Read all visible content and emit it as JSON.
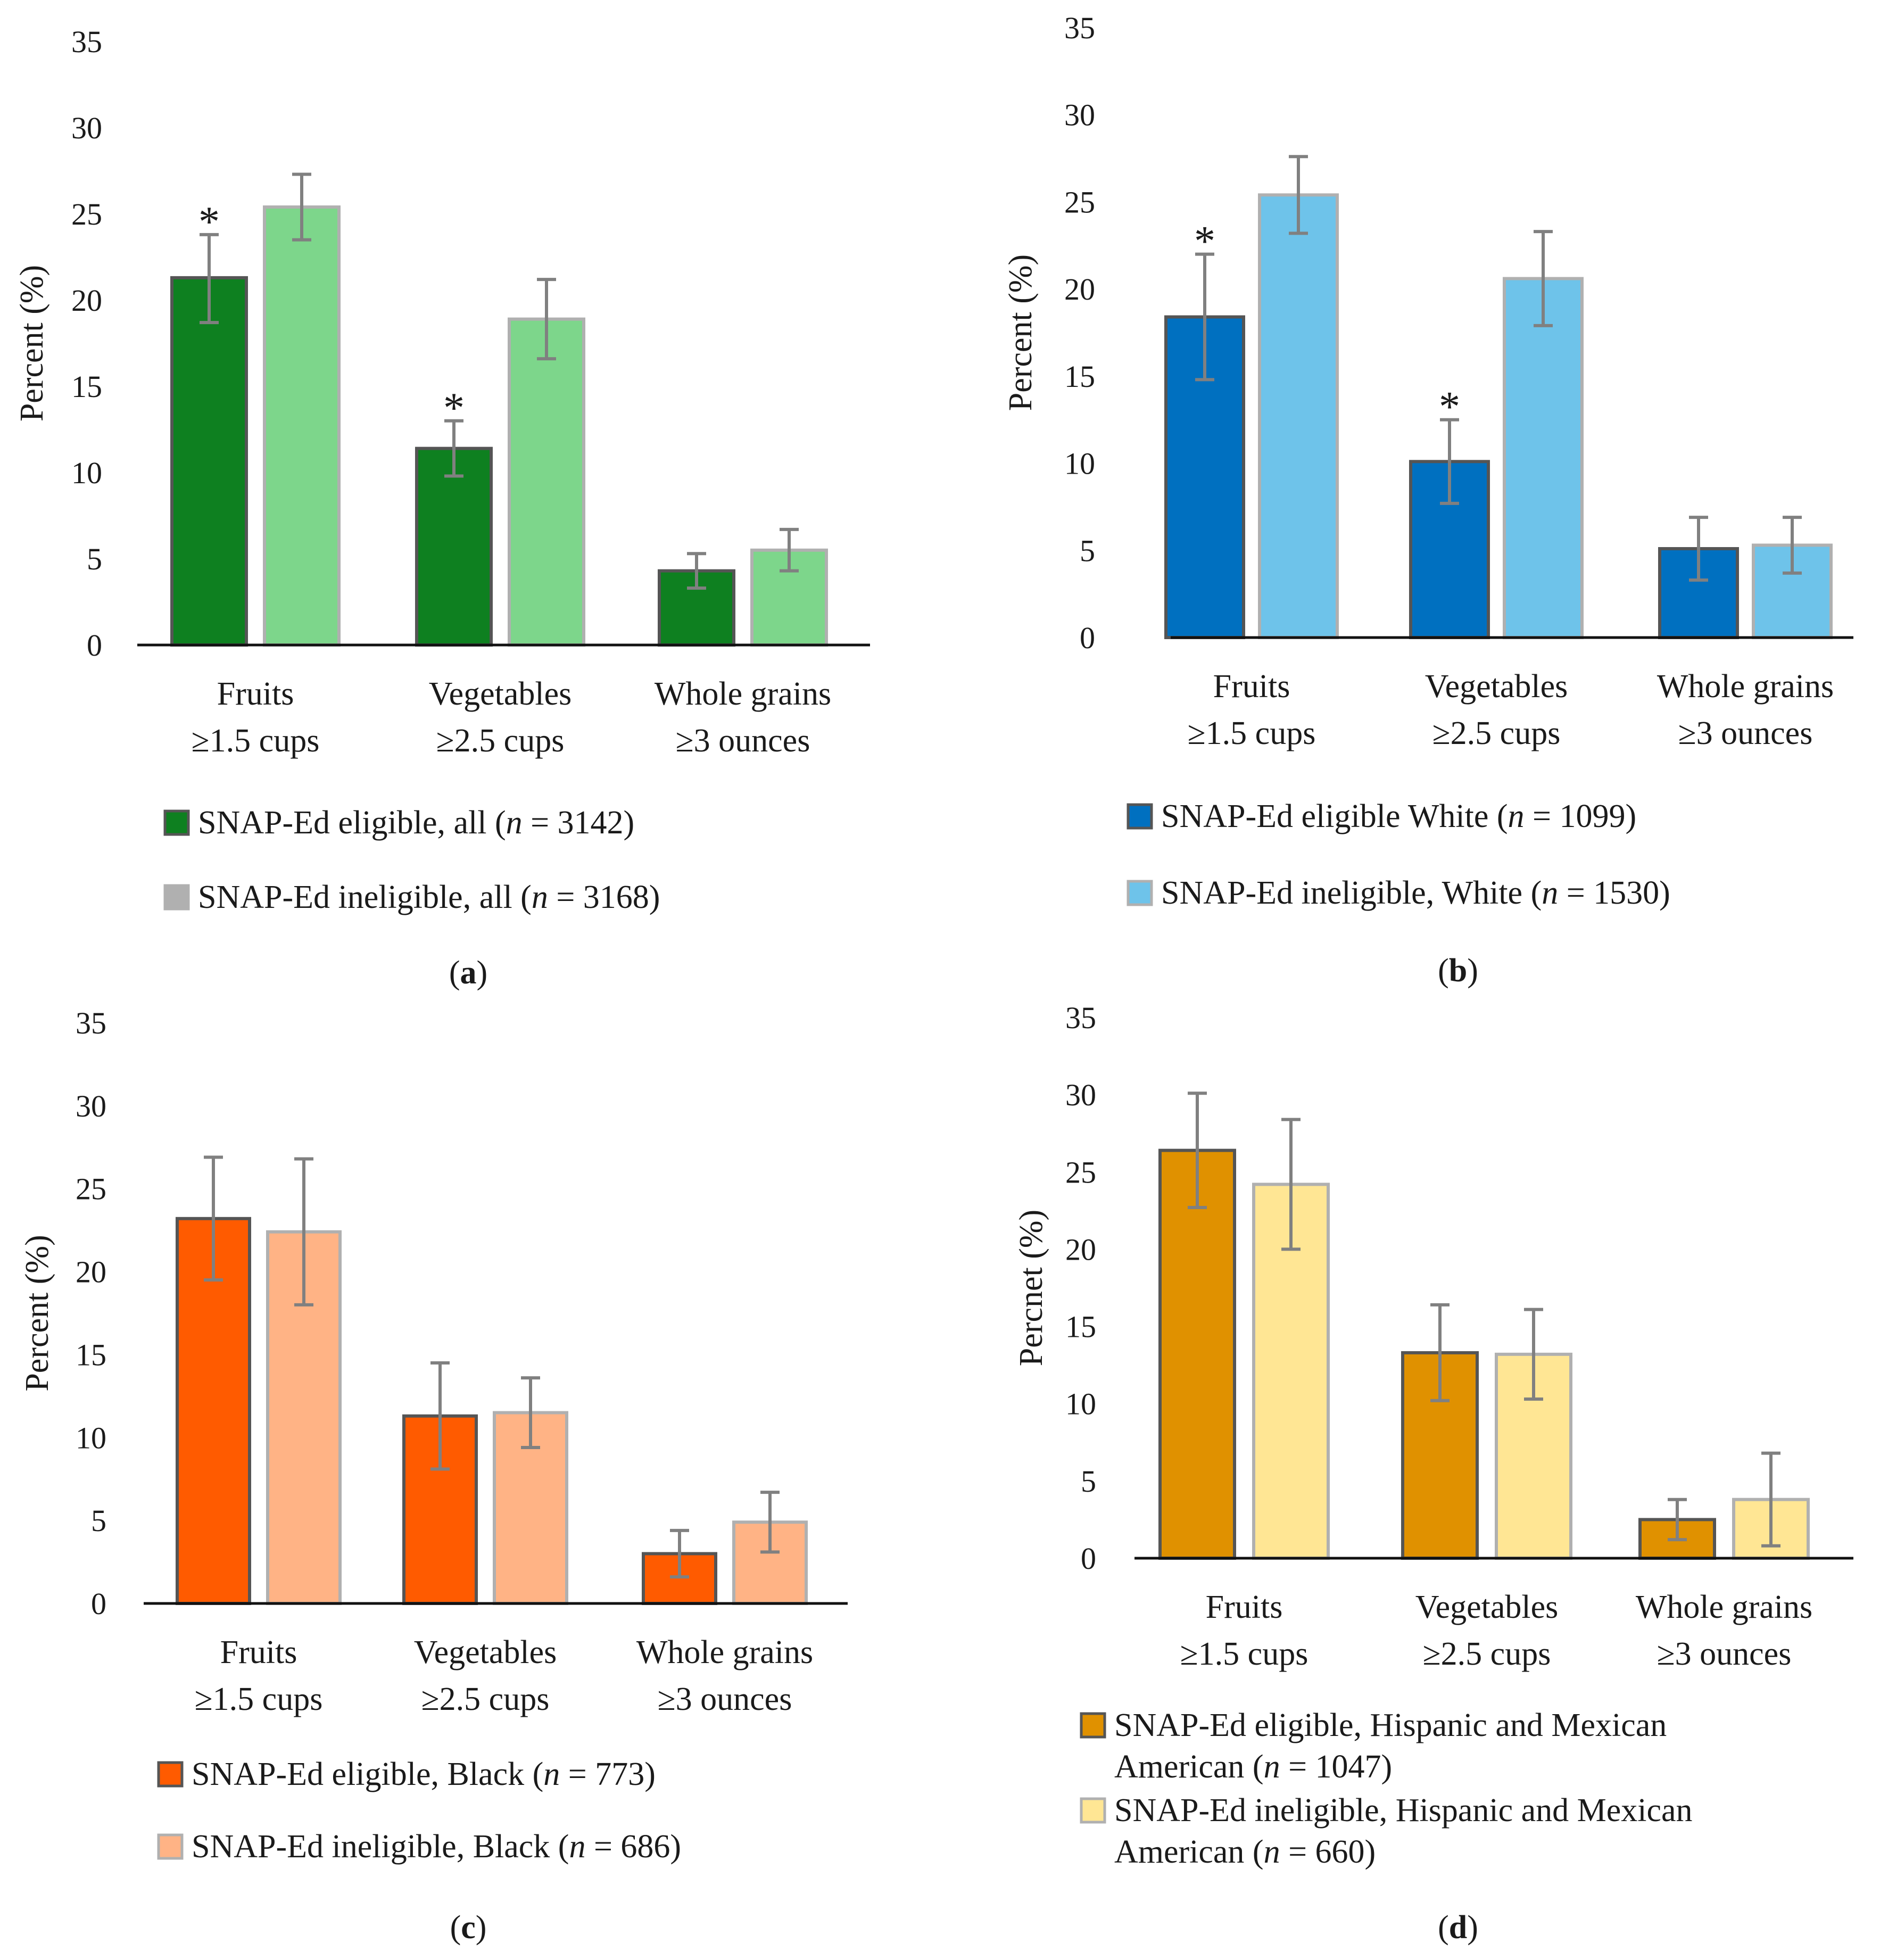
{
  "chart_data": [
    {
      "id": "a",
      "type": "bar",
      "caption": "(a)",
      "ylabel": "Percent (%)",
      "ylim": [
        0,
        35
      ],
      "yticks": [
        0,
        5,
        10,
        15,
        20,
        25,
        30,
        35
      ],
      "categories": [
        [
          "Fruits",
          "≥1.5 cups"
        ],
        [
          "Vegetables",
          "≥2.5 cups"
        ],
        [
          "Whole grains",
          "≥3 ounces"
        ]
      ],
      "series": [
        {
          "name": "SNAP-Ed eligible, all",
          "n": "3142",
          "fill": "#0e8020",
          "stroke": "#555555",
          "values": [
            21.3,
            11.4,
            4.3
          ],
          "err_low": [
            18.7,
            9.8,
            3.3
          ],
          "err_high": [
            23.8,
            13.0,
            5.3
          ],
          "sig": [
            true,
            true,
            false
          ]
        },
        {
          "name": "SNAP-Ed ineligible, all",
          "n": "3168",
          "fill": "#7dd68b",
          "stroke": "#b0b0b0",
          "legend_fill": "#b0b0b0",
          "values": [
            25.4,
            18.9,
            5.5
          ],
          "err_low": [
            23.5,
            16.6,
            4.3
          ],
          "err_high": [
            27.3,
            21.2,
            6.7
          ],
          "sig": [
            false,
            false,
            false
          ]
        }
      ]
    },
    {
      "id": "b",
      "type": "bar",
      "caption": "(b)",
      "ylabel": "Percent (%)",
      "ylim": [
        0,
        35
      ],
      "yticks": [
        0,
        5,
        10,
        15,
        20,
        25,
        30,
        35
      ],
      "categories": [
        [
          "Fruits",
          "≥1.5 cups"
        ],
        [
          "Vegetables",
          "≥2.5 cups"
        ],
        [
          "Whole grains",
          "≥3 ounces"
        ]
      ],
      "series": [
        {
          "name": "SNAP-Ed eligible White",
          "n": "1099",
          "fill": "#0070c0",
          "stroke": "#555555",
          "values": [
            18.4,
            10.1,
            5.1
          ],
          "err_low": [
            14.8,
            7.7,
            3.3
          ],
          "err_high": [
            22.0,
            12.5,
            6.9
          ],
          "sig": [
            true,
            true,
            false
          ]
        },
        {
          "name": "SNAP-Ed ineligible, White",
          "n": "1530",
          "fill": "#6ec3ea",
          "stroke": "#b0b0b0",
          "values": [
            25.4,
            20.6,
            5.3
          ],
          "err_low": [
            23.2,
            17.9,
            3.7
          ],
          "err_high": [
            27.6,
            23.3,
            6.9
          ],
          "sig": [
            false,
            false,
            false
          ]
        }
      ]
    },
    {
      "id": "c",
      "type": "bar",
      "caption": "(c)",
      "ylabel": "Percent (%)",
      "ylim": [
        0,
        35
      ],
      "yticks": [
        0,
        5,
        10,
        15,
        20,
        25,
        30,
        35
      ],
      "categories": [
        [
          "Fruits",
          "≥1.5 cups"
        ],
        [
          "Vegetables",
          "≥2.5 cups"
        ],
        [
          "Whole grains",
          "≥3 ounces"
        ]
      ],
      "series": [
        {
          "name": "SNAP-Ed eligible, Black",
          "n": "773",
          "fill": "#ff5b00",
          "stroke": "#555555",
          "values": [
            23.2,
            11.3,
            3.0
          ],
          "err_low": [
            19.5,
            8.1,
            1.6
          ],
          "err_high": [
            26.9,
            14.5,
            4.4
          ],
          "sig": [
            false,
            false,
            false
          ]
        },
        {
          "name": "SNAP-Ed ineligible, Black",
          "n": "686",
          "fill": "#ffb385",
          "stroke": "#b0b0b0",
          "values": [
            22.4,
            11.5,
            4.9
          ],
          "err_low": [
            18.0,
            9.4,
            3.1
          ],
          "err_high": [
            26.8,
            13.6,
            6.7
          ],
          "sig": [
            false,
            false,
            false
          ]
        }
      ]
    },
    {
      "id": "d",
      "type": "bar",
      "caption": "(d)",
      "ylabel": "Percnet (%)",
      "ylim": [
        0,
        35
      ],
      "yticks": [
        0,
        5,
        10,
        15,
        20,
        25,
        30,
        35
      ],
      "categories": [
        [
          "Fruits",
          "≥1.5 cups"
        ],
        [
          "Vegetables",
          "≥2.5 cups"
        ],
        [
          "Whole grains",
          "≥3 ounces"
        ]
      ],
      "series": [
        {
          "name": "SNAP-Ed eligible, Hispanic and Mexican American",
          "n": "1047",
          "fill": "#e09100",
          "stroke": "#555555",
          "values": [
            26.4,
            13.3,
            2.5
          ],
          "err_low": [
            22.7,
            10.2,
            1.2
          ],
          "err_high": [
            30.1,
            16.4,
            3.8
          ],
          "sig": [
            false,
            false,
            false
          ]
        },
        {
          "name": "SNAP-Ed ineligible, Hispanic and Mexican American",
          "n": "660",
          "fill": "#ffe694",
          "stroke": "#b0b0b0",
          "values": [
            24.2,
            13.2,
            3.8
          ],
          "err_low": [
            20.0,
            10.3,
            0.8
          ],
          "err_high": [
            28.4,
            16.1,
            6.8
          ],
          "sig": [
            false,
            false,
            false
          ]
        }
      ]
    }
  ]
}
